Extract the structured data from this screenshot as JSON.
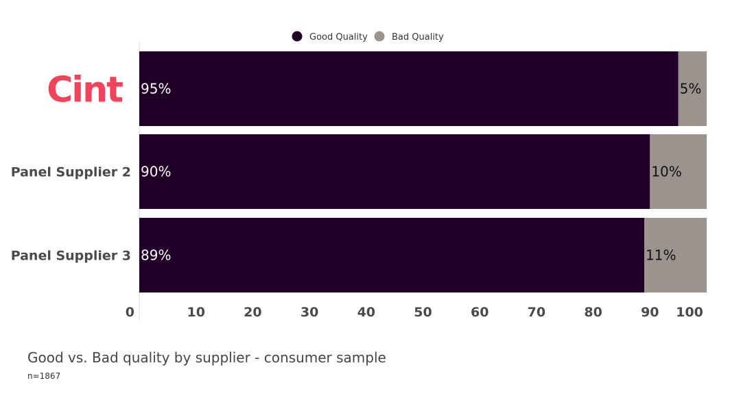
{
  "chart_data": {
    "type": "bar",
    "orientation": "horizontal",
    "stacked": true,
    "categories": [
      "Cint",
      "Panel Supplier 2",
      "Panel Supplier 3"
    ],
    "series": [
      {
        "name": "Good Quality",
        "values": [
          95,
          90,
          89
        ],
        "labels": [
          "95%",
          "90%",
          "89%"
        ],
        "color": "#200027"
      },
      {
        "name": "Bad Quality",
        "values": [
          5,
          10,
          11
        ],
        "labels": [
          "5%",
          "10%",
          "11%"
        ],
        "color": "#9b938e"
      }
    ],
    "xlim": [
      0,
      100
    ],
    "xticks": [
      0,
      10,
      20,
      30,
      40,
      50,
      60,
      70,
      80,
      90,
      100
    ],
    "legend": "top-center",
    "grid": false,
    "title": "Good vs. Bad quality by supplier - consumer sample",
    "note": "n=1867",
    "logo_color": "#f0445a"
  }
}
